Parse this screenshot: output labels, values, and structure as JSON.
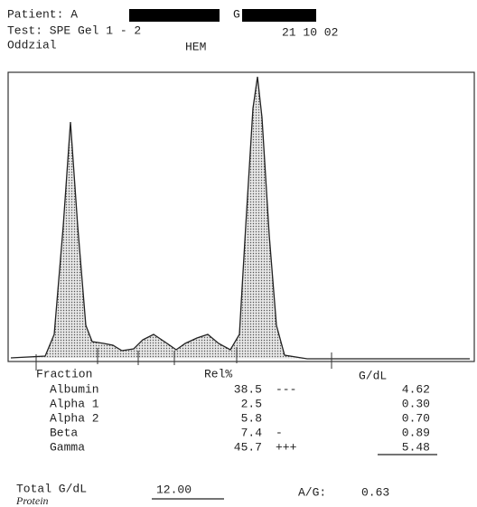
{
  "header": {
    "patient_label": "Patient: A",
    "patient_second": "G",
    "test": "Test: SPE Gel 1 - 2",
    "date": "21 10 02",
    "ward_label": "Oddzial",
    "ward": "HEM"
  },
  "table": {
    "columns": [
      "Fraction",
      "Rel%",
      "G/dL"
    ],
    "rows": [
      [
        "Albumin",
        "38.5",
        "---",
        "4.62"
      ],
      [
        "Alpha 1",
        "2.5",
        "",
        "0.30"
      ],
      [
        "Alpha 2",
        "5.8",
        "",
        "0.70"
      ],
      [
        "Beta",
        "7.4",
        "-",
        "0.89"
      ],
      [
        "Gamma",
        "45.7",
        "+++",
        "5.48"
      ]
    ]
  },
  "footer": {
    "total_label": "Total G/dL",
    "total": "12.00",
    "ag_label": "A/G:",
    "ag": "0.63",
    "handwritten": "Protein"
  }
}
